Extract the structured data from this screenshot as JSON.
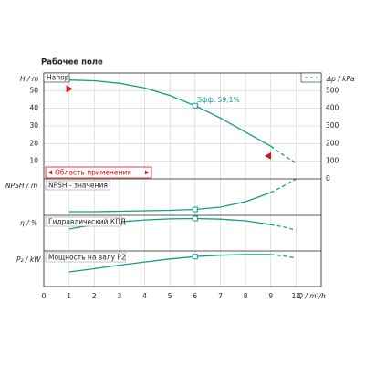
{
  "chart_data": [
    {
      "type": "line",
      "title": "Рабочее поле",
      "ylabel": "H / m",
      "y2label": "Δp / kPa",
      "xlim": [
        0,
        11
      ],
      "ylim": [
        0,
        60
      ],
      "yticks": [
        10,
        20,
        30,
        40,
        50
      ],
      "y2lim": [
        0,
        600
      ],
      "y2ticks": [
        0,
        100,
        200,
        300,
        400,
        500
      ],
      "x": [
        1,
        2,
        3,
        4,
        5,
        6,
        7,
        8,
        9,
        9.5,
        10
      ],
      "series": [
        {
          "name": "Напор",
          "color": "#169b8c",
          "values": [
            56,
            55.6,
            54.2,
            51.5,
            47.3,
            41.5,
            34.5,
            26.5,
            18.5,
            null,
            null
          ]
        },
        {
          "color": "#169b8c",
          "dashed": true,
          "values": [
            null,
            null,
            null,
            null,
            null,
            null,
            null,
            null,
            18.5,
            13.5,
            9
          ]
        }
      ],
      "duty_point": {
        "x": 6,
        "y": 41.5
      },
      "annotation": "Эфф. 59,1%",
      "range_markers": [
        {
          "x": 1,
          "y": 51
        },
        {
          "x": 8.9,
          "y": 13
        }
      ],
      "application_range_label": "Область применения",
      "grid": true
    },
    {
      "type": "line",
      "ylabel": "NPSH / m",
      "label": "NPSH - значения",
      "xlim": [
        0,
        11
      ],
      "ylim": [
        0,
        4
      ],
      "x": [
        1,
        2,
        3,
        4,
        5,
        6,
        7,
        8,
        9,
        9.5,
        10
      ],
      "series": [
        {
          "color": "#169b8c",
          "values": [
            0.4,
            0.4,
            0.45,
            0.5,
            0.55,
            0.65,
            0.9,
            1.5,
            2.5,
            null,
            null
          ]
        },
        {
          "color": "#169b8c",
          "dashed": true,
          "values": [
            null,
            null,
            null,
            null,
            null,
            null,
            null,
            null,
            2.5,
            3.2,
            4
          ]
        }
      ],
      "duty_point": {
        "x": 6,
        "y": 0.65
      }
    },
    {
      "type": "line",
      "ylabel": "η / %",
      "label": "Гидравлический КПД",
      "xlim": [
        0,
        11
      ],
      "ylim": [
        0,
        65
      ],
      "x": [
        1,
        2,
        3,
        4,
        5,
        6,
        7,
        8,
        9,
        9.5,
        10
      ],
      "series": [
        {
          "color": "#169b8c",
          "values": [
            40,
            48,
            53,
            56.5,
            58.5,
            59.1,
            58,
            55,
            48,
            null,
            null
          ]
        },
        {
          "color": "#169b8c",
          "dashed": true,
          "values": [
            null,
            null,
            null,
            null,
            null,
            null,
            null,
            null,
            48,
            44,
            38
          ]
        }
      ],
      "duty_point": {
        "x": 6,
        "y": 59.1
      }
    },
    {
      "type": "line",
      "ylabel": "P₂ / kW",
      "label": "Мощность на валу P2",
      "xlabel": "Q / m³/h",
      "xlim": [
        0,
        11
      ],
      "xticks": [
        0,
        1,
        2,
        3,
        4,
        5,
        6,
        7,
        8,
        9,
        10
      ],
      "ylim": [
        0,
        2
      ],
      "x": [
        1,
        2,
        3,
        4,
        5,
        6,
        7,
        8,
        9,
        9.5,
        10
      ],
      "series": [
        {
          "color": "#169b8c",
          "values": [
            0.82,
            1.0,
            1.2,
            1.38,
            1.55,
            1.68,
            1.76,
            1.8,
            1.8,
            null,
            null
          ]
        },
        {
          "color": "#169b8c",
          "dashed": true,
          "values": [
            null,
            null,
            null,
            null,
            null,
            null,
            null,
            null,
            1.8,
            1.72,
            1.6
          ]
        }
      ],
      "duty_point": {
        "x": 6,
        "y": 1.68
      }
    }
  ]
}
